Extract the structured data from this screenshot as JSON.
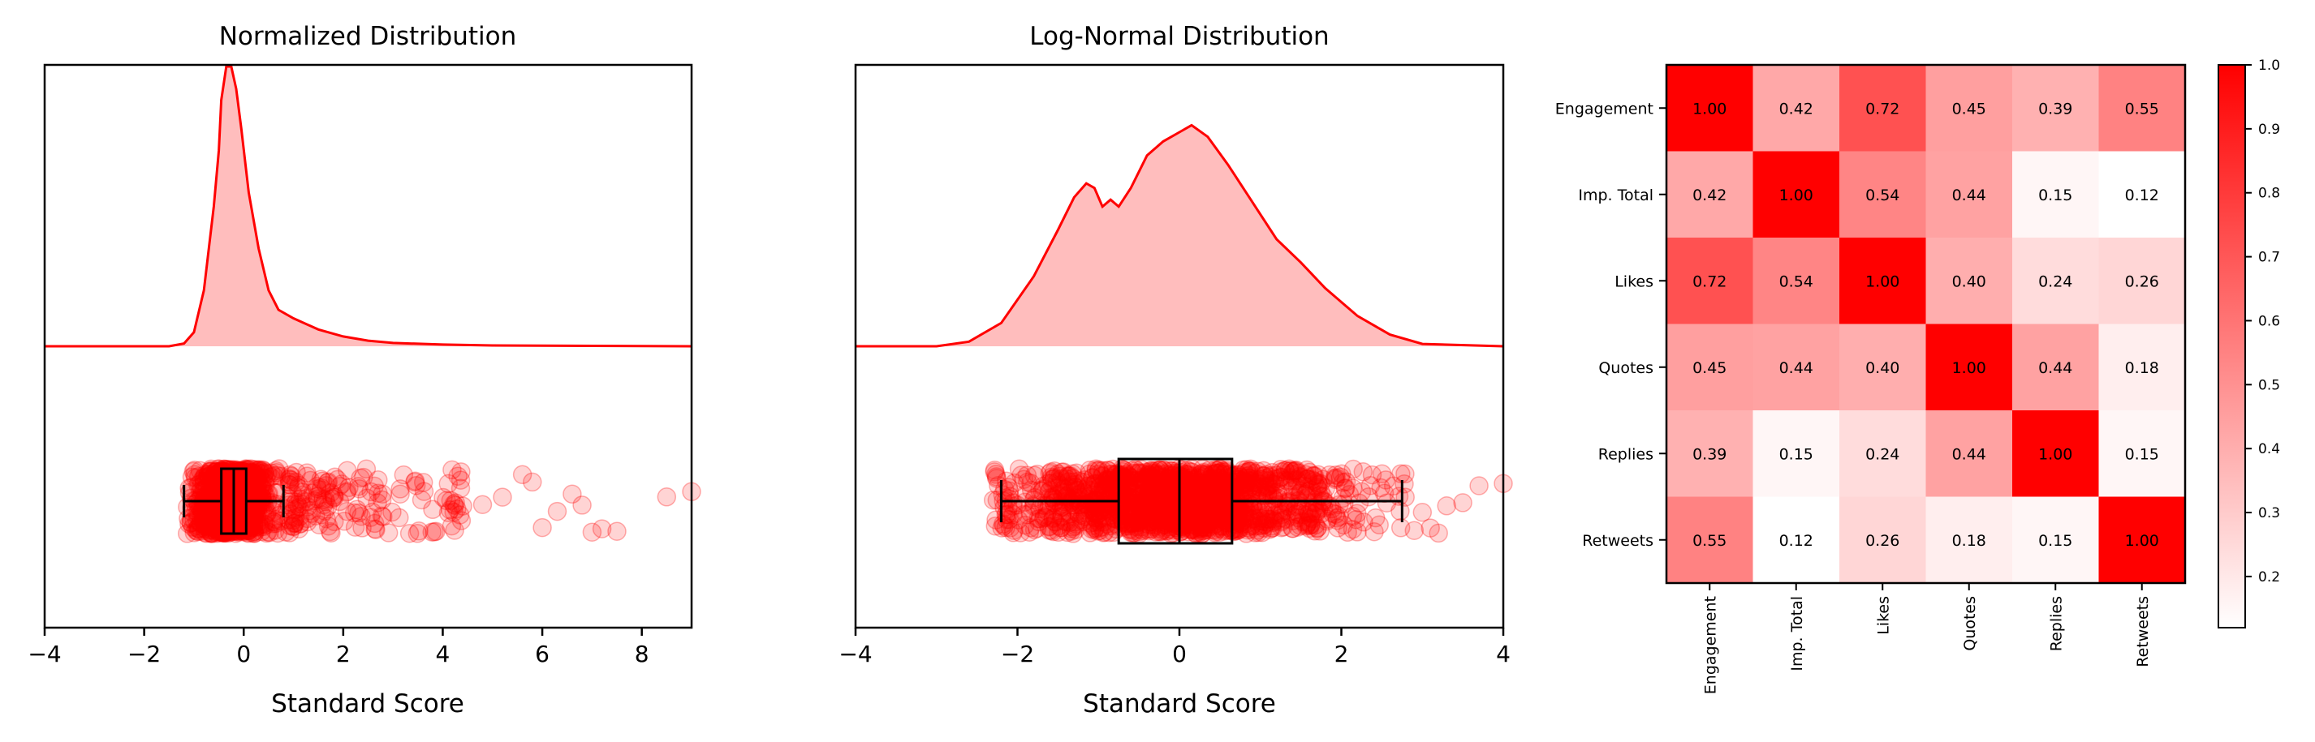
{
  "chart_data": [
    {
      "type": "area",
      "title": "Normalized Distribution",
      "xlabel": "Standard Score",
      "ylabel": "",
      "xlim": [
        -4,
        9
      ],
      "xticks": [
        "−4",
        "−2",
        "0",
        "2",
        "4",
        "6",
        "8"
      ],
      "grid": false,
      "color": "#ff0000",
      "density": {
        "x": [
          -4,
          -1.5,
          -1.2,
          -1.0,
          -0.8,
          -0.6,
          -0.5,
          -0.45,
          -0.35,
          -0.25,
          -0.15,
          -0.05,
          0.1,
          0.3,
          0.5,
          0.7,
          1.0,
          1.5,
          2.0,
          2.5,
          3.0,
          4.0,
          5.0,
          9.0
        ],
        "y": [
          0,
          0,
          0.01,
          0.05,
          0.2,
          0.5,
          0.7,
          0.88,
          1.0,
          1.0,
          0.92,
          0.78,
          0.55,
          0.35,
          0.2,
          0.13,
          0.1,
          0.06,
          0.035,
          0.02,
          0.012,
          0.006,
          0.003,
          0
        ]
      },
      "boxplot": {
        "whisker_low": -1.2,
        "q1": -0.45,
        "median": -0.2,
        "q3": 0.05,
        "whisker_high": 0.8
      },
      "points": {
        "dense_range": [
          -1.2,
          0.9
        ],
        "tail_range": [
          0.9,
          4.5
        ],
        "outliers": [
          4.8,
          5.2,
          5.6,
          5.8,
          6.0,
          6.3,
          6.6,
          6.8,
          7.0,
          7.2,
          7.5,
          8.5,
          9.0
        ]
      }
    },
    {
      "type": "area",
      "title": "Log-Normal Distribution",
      "xlabel": "Standard Score",
      "ylabel": "",
      "xlim": [
        -4,
        4
      ],
      "xticks": [
        "−4",
        "−2",
        "0",
        "2",
        "4"
      ],
      "grid": false,
      "color": "#ff0000",
      "density": {
        "x": [
          -4,
          -3.0,
          -2.6,
          -2.2,
          -1.8,
          -1.5,
          -1.3,
          -1.15,
          -1.05,
          -0.95,
          -0.85,
          -0.75,
          -0.6,
          -0.4,
          -0.2,
          0.0,
          0.15,
          0.35,
          0.6,
          0.9,
          1.2,
          1.5,
          1.8,
          2.2,
          2.6,
          3.0,
          4.0
        ],
        "y": [
          0,
          0,
          0.02,
          0.1,
          0.3,
          0.5,
          0.64,
          0.7,
          0.68,
          0.6,
          0.63,
          0.6,
          0.68,
          0.82,
          0.88,
          0.92,
          0.95,
          0.9,
          0.78,
          0.62,
          0.46,
          0.36,
          0.25,
          0.13,
          0.05,
          0.01,
          0
        ]
      },
      "boxplot": {
        "whisker_low": -2.2,
        "q1": -0.75,
        "median": 0.0,
        "q3": 0.65,
        "whisker_high": 2.75
      },
      "points": {
        "dense_range": [
          -2.3,
          2.8
        ],
        "outliers": [
          2.9,
          3.0,
          3.1,
          3.2,
          3.3,
          3.5,
          3.7,
          4.0
        ]
      }
    },
    {
      "type": "heatmap",
      "title": "",
      "row_labels": [
        "Engagement",
        "Imp. Total",
        "Likes",
        "Quotes",
        "Replies",
        "Retweets"
      ],
      "col_labels": [
        "Engagement",
        "Imp. Total",
        "Likes",
        "Quotes",
        "Replies",
        "Retweets"
      ],
      "values": [
        [
          1.0,
          0.42,
          0.72,
          0.45,
          0.39,
          0.55
        ],
        [
          0.42,
          1.0,
          0.54,
          0.44,
          0.15,
          0.12
        ],
        [
          0.72,
          0.54,
          1.0,
          0.4,
          0.24,
          0.26
        ],
        [
          0.45,
          0.44,
          0.4,
          1.0,
          0.44,
          0.18
        ],
        [
          0.39,
          0.15,
          0.24,
          0.44,
          1.0,
          0.15
        ],
        [
          0.55,
          0.12,
          0.26,
          0.18,
          0.15,
          1.0
        ]
      ],
      "colorbar": {
        "min": 0.12,
        "max": 1.0,
        "ticks": [
          "0.2",
          "0.3",
          "0.4",
          "0.5",
          "0.6",
          "0.7",
          "0.8",
          "0.9",
          "1.0"
        ],
        "tick_values": [
          0.2,
          0.3,
          0.4,
          0.5,
          0.6,
          0.7,
          0.8,
          0.9,
          1.0
        ]
      },
      "colormap": {
        "low": "#ffffff",
        "high": "#ff0000"
      }
    }
  ]
}
